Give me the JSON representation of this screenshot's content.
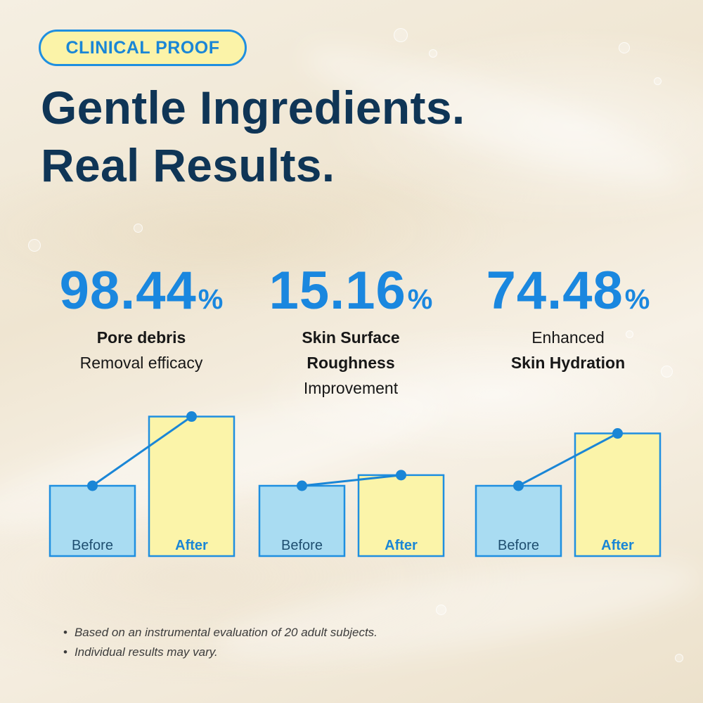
{
  "badge": "CLINICAL PROOF",
  "headline": {
    "line1": "Gentle Ingredients.",
    "line2": "Real Results."
  },
  "stats": [
    {
      "value": "98.44",
      "unit": "%",
      "line1": "Pore debris",
      "line2": "Removal efficacy",
      "line3": ""
    },
    {
      "value": "15.16",
      "unit": "%",
      "line1": "Skin Surface",
      "line2": "Roughness",
      "line3": "Improvement"
    },
    {
      "value": "74.48",
      "unit": "%",
      "line1": "Enhanced",
      "line2": "Skin Hydration",
      "line3": ""
    }
  ],
  "chart_data": [
    {
      "type": "bar",
      "title": "Pore debris Removal efficacy",
      "categories": [
        "Before",
        "After"
      ],
      "values": [
        100,
        198.44
      ],
      "improvement_pct": 98.44,
      "ylim": [
        0,
        220
      ],
      "grid": false
    },
    {
      "type": "bar",
      "title": "Skin Surface Roughness Improvement",
      "categories": [
        "Before",
        "After"
      ],
      "values": [
        100,
        115.16
      ],
      "improvement_pct": 15.16,
      "ylim": [
        0,
        220
      ],
      "grid": false
    },
    {
      "type": "bar",
      "title": "Enhanced Skin Hydration",
      "categories": [
        "Before",
        "After"
      ],
      "values": [
        100,
        174.48
      ],
      "improvement_pct": 74.48,
      "ylim": [
        0,
        220
      ],
      "grid": false
    }
  ],
  "notes": [
    "Based on an instrumental evaluation of 20 adult subjects.",
    "Individual results may vary."
  ],
  "colors": {
    "before_fill": "#a9dcf2",
    "after_fill": "#fbf4a9",
    "bar_stroke": "#1f8fe0",
    "line": "#1a86d6",
    "before_text": "#1f4f70",
    "after_text": "#1a86d6"
  }
}
